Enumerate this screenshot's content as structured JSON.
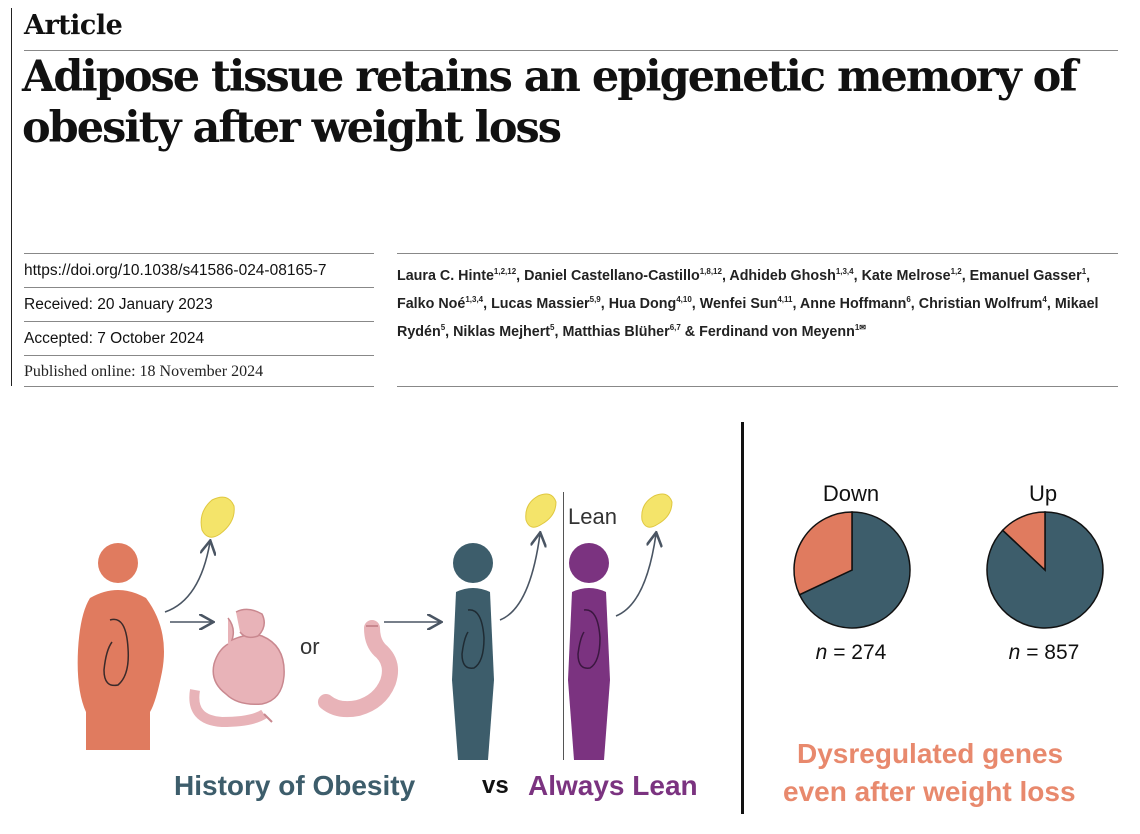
{
  "article": {
    "section_label": "Article",
    "title": "Adipose tissue retains an epigenetic memory of obesity after weight loss",
    "doi": "https://doi.org/10.1038/s41586-024-08165-7",
    "received": "Received: 20 January 2023",
    "accepted": "Accepted: 7 October 2024",
    "published": "Published online: 18 November 2024",
    "authors": [
      {
        "name": "Laura C. Hinte",
        "aff": "1,2,12",
        "sep": ", "
      },
      {
        "name": "Daniel Castellano-Castillo",
        "aff": "1,8,12",
        "sep": ", "
      },
      {
        "name": "Adhideb Ghosh",
        "aff": "1,3,4",
        "sep": ", "
      },
      {
        "name": "Kate Melrose",
        "aff": "1,2",
        "sep": ", "
      },
      {
        "name": "Emanuel Gasser",
        "aff": "1",
        "sep": ", "
      },
      {
        "name": "Falko Noé",
        "aff": "1,3,4",
        "sep": ", "
      },
      {
        "name": "Lucas Massier",
        "aff": "5,9",
        "sep": ", "
      },
      {
        "name": "Hua Dong",
        "aff": "4,10",
        "sep": ", "
      },
      {
        "name": "Wenfei Sun",
        "aff": "4,11",
        "sep": ", "
      },
      {
        "name": "Anne Hoffmann",
        "aff": "6",
        "sep": ", "
      },
      {
        "name": "Christian Wolfrum",
        "aff": "4",
        "sep": ", "
      },
      {
        "name": "Mikael Rydén",
        "aff": "5",
        "sep": ", "
      },
      {
        "name": "Niklas Mejhert",
        "aff": "5",
        "sep": ", "
      },
      {
        "name": "Matthias Blüher",
        "aff": "6,7",
        "sep": " & "
      },
      {
        "name": "Ferdinand von Meyenn",
        "aff": "1✉",
        "sep": ""
      }
    ]
  },
  "figure": {
    "or_label": "or",
    "lean_label": "Lean",
    "history_label": "History of Obesity",
    "vs_label": "vs",
    "always_lean_label": "Always Lean",
    "dysregulated_line1": "Dysregulated genes",
    "dysregulated_line2": "even after weight loss",
    "colors": {
      "obese": "#e07b5f",
      "lost": "#3d5d6b",
      "lean": "#7b3380",
      "stomach": "#e8b3b8",
      "fat": "#f4e46a",
      "history_text": "#3d5d6b",
      "lean_text": "#7b3380",
      "dysregulated_text": "#e8896d"
    }
  },
  "chart_data": {
    "type": "pie",
    "charts": [
      {
        "title": "Down",
        "n_label": "= 274",
        "n": 274,
        "slices": [
          {
            "name": "",
            "value": 0.68,
            "color": "#3d5d6b"
          },
          {
            "name": "",
            "value": 0.32,
            "color": "#e07b5f"
          }
        ]
      },
      {
        "title": "Up",
        "n_label": "= 857",
        "n": 857,
        "slices": [
          {
            "name": "",
            "value": 0.87,
            "color": "#3d5d6b"
          },
          {
            "name": "",
            "value": 0.13,
            "color": "#e07b5f"
          }
        ]
      }
    ]
  }
}
